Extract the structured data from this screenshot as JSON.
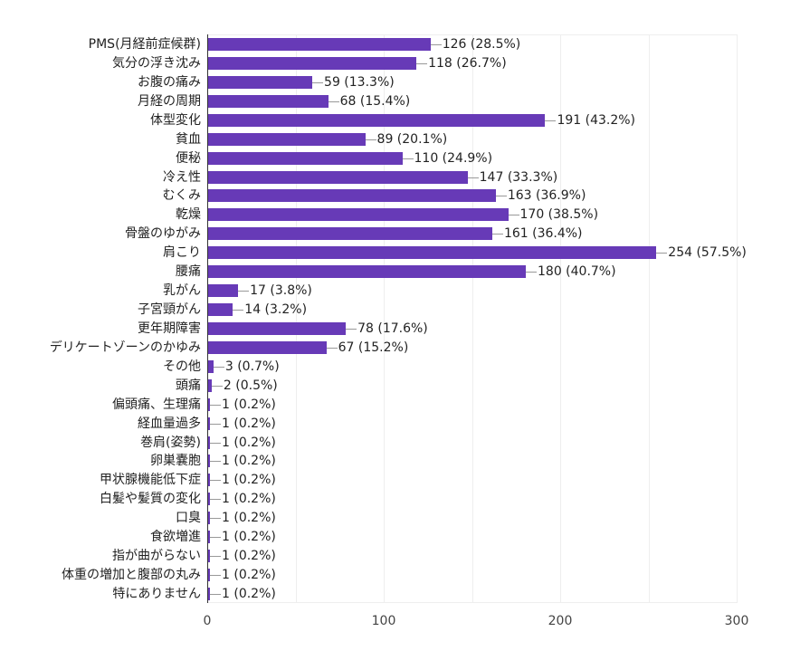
{
  "chart_data": {
    "type": "bar",
    "orientation": "horizontal",
    "title": "",
    "xlabel": "",
    "ylabel": "",
    "xlim": [
      0,
      300
    ],
    "x_ticks": [
      0,
      100,
      200,
      300
    ],
    "grid_lines": [
      50,
      100,
      150,
      200,
      250,
      300
    ],
    "grid": true,
    "legend": "none",
    "bar_color": "#673ab7",
    "categories": [
      "PMS(月経前症候群)",
      "気分の浮き沈み",
      "お腹の痛み",
      "月経の周期",
      "体型変化",
      "貧血",
      "便秘",
      "冷え性",
      "むくみ",
      "乾燥",
      "骨盤のゆがみ",
      "肩こり",
      "腰痛",
      "乳がん",
      "子宮頸がん",
      "更年期障害",
      "デリケートゾーンのかゆみ",
      "その他",
      "頭痛",
      "偏頭痛、生理痛",
      "経血量過多",
      "巻肩(姿勢)",
      "卵巣嚢胞",
      "甲状腺機能低下症",
      "白髪や髪質の変化",
      "口臭",
      "食欲増進",
      "指が曲がらない",
      "体重の増加と腹部の丸み",
      "特にありません"
    ],
    "values": [
      126,
      118,
      59,
      68,
      191,
      89,
      110,
      147,
      163,
      170,
      161,
      254,
      180,
      17,
      14,
      78,
      67,
      3,
      2,
      1,
      1,
      1,
      1,
      1,
      1,
      1,
      1,
      1,
      1,
      1
    ],
    "labels": [
      "126 (28.5%)",
      "118 (26.7%)",
      "59 (13.3%)",
      "68 (15.4%)",
      "191 (43.2%)",
      "89 (20.1%)",
      "110 (24.9%)",
      "147 (33.3%)",
      "163 (36.9%)",
      "170 (38.5%)",
      "161 (36.4%)",
      "254 (57.5%)",
      "180 (40.7%)",
      "17 (3.8%)",
      "14 (3.2%)",
      "78 (17.6%)",
      "67 (15.2%)",
      "3 (0.7%)",
      "2 (0.5%)",
      "1 (0.2%)",
      "1 (0.2%)",
      "1 (0.2%)",
      "1 (0.2%)",
      "1 (0.2%)",
      "1 (0.2%)",
      "1 (0.2%)",
      "1 (0.2%)",
      "1 (0.2%)",
      "1 (0.2%)",
      "1 (0.2%)"
    ]
  },
  "axis": {
    "ticks": [
      "0",
      "100",
      "200",
      "300"
    ]
  }
}
